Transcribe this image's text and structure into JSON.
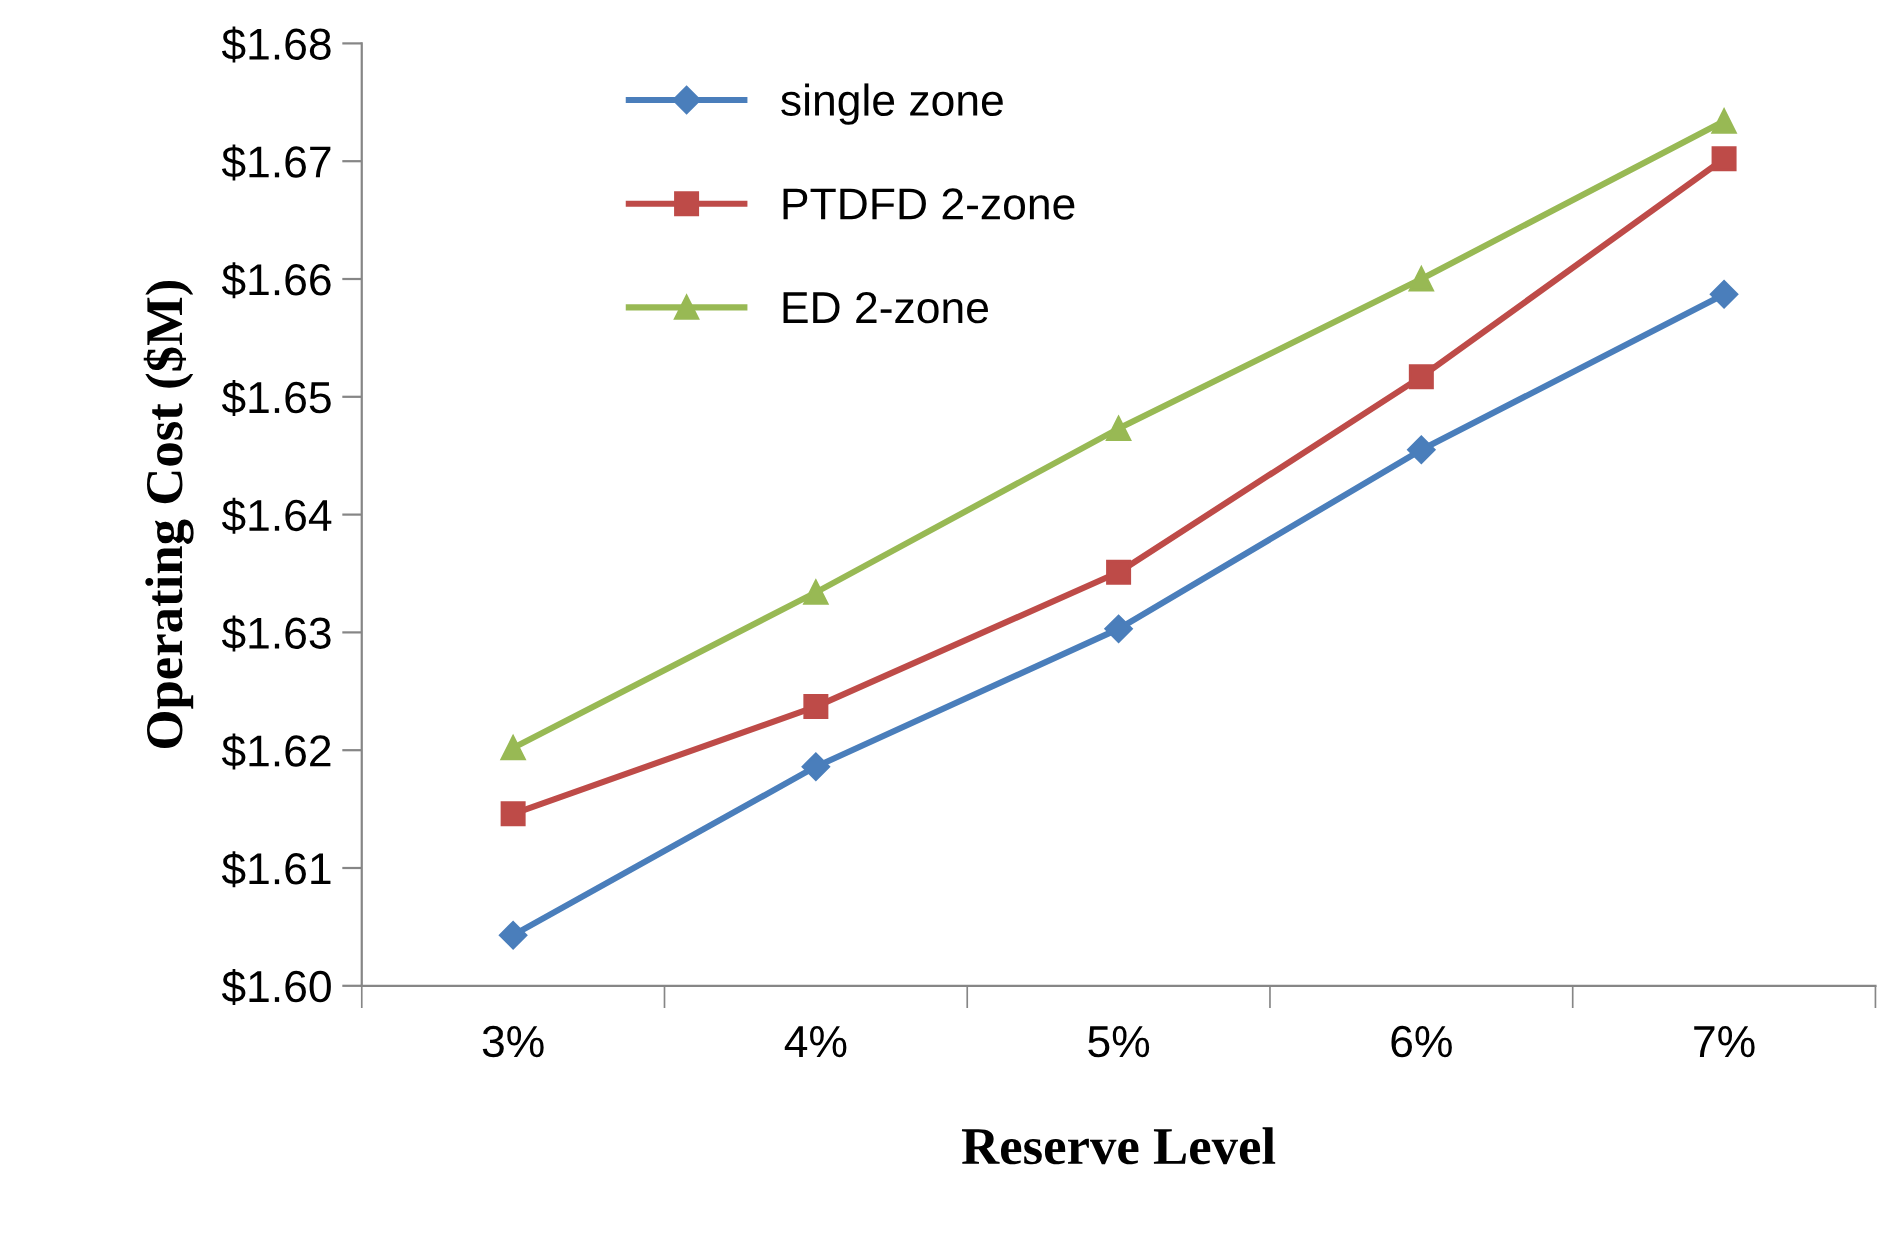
{
  "chart_data": {
    "type": "line",
    "xlabel": "Reserve Level",
    "ylabel": "Operating Cost ($M)",
    "categories": [
      "3%",
      "4%",
      "5%",
      "6%",
      "7%"
    ],
    "series": [
      {
        "name": "single zone",
        "color": "#4a7ebb",
        "marker": "diamond",
        "values": [
          1.6043,
          1.6186,
          1.6303,
          1.6455,
          1.6587
        ]
      },
      {
        "name": "PTDFD 2-zone",
        "color": "#be4b48",
        "marker": "square",
        "values": [
          1.6146,
          1.6237,
          1.6351,
          1.6517,
          1.6702
        ]
      },
      {
        "name": "ED 2-zone",
        "color": "#98b954",
        "marker": "triangle",
        "values": [
          1.6202,
          1.6334,
          1.6473,
          1.66,
          1.6734
        ]
      }
    ],
    "ylim": [
      1.6,
      1.68
    ],
    "yticks": [
      {
        "value": 1.6,
        "label": "$1.60"
      },
      {
        "value": 1.61,
        "label": "$1.61"
      },
      {
        "value": 1.62,
        "label": "$1.62"
      },
      {
        "value": 1.63,
        "label": "$1.63"
      },
      {
        "value": 1.64,
        "label": "$1.64"
      },
      {
        "value": 1.65,
        "label": "$1.65"
      },
      {
        "value": 1.66,
        "label": "$1.66"
      },
      {
        "value": 1.67,
        "label": "$1.67"
      },
      {
        "value": 1.68,
        "label": "$1.68"
      }
    ],
    "grid": false,
    "legend": "top left",
    "line_style": "solid"
  }
}
